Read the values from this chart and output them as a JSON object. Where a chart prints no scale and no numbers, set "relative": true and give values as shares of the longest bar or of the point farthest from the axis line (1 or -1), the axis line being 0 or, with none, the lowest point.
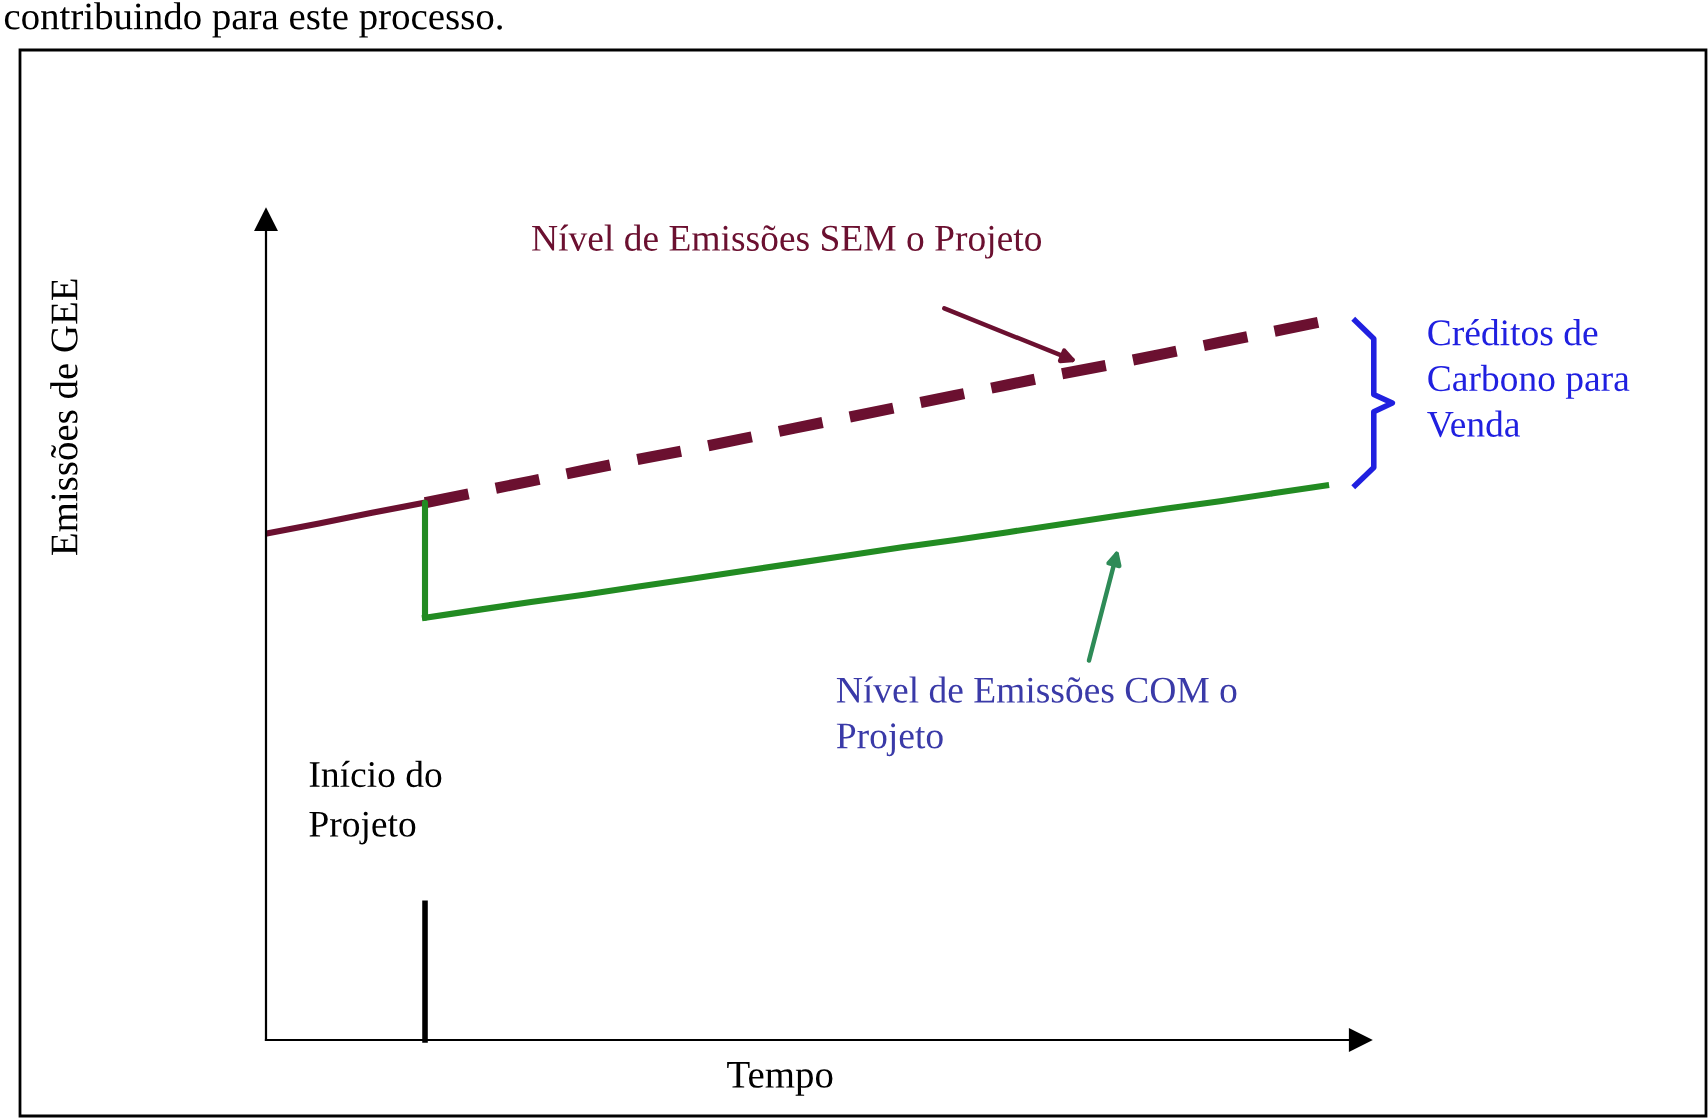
{
  "chart_data": {
    "type": "line",
    "relative": true,
    "xlabel": "Tempo",
    "ylabel": "Emissões de GEE",
    "marker": "none",
    "categories": [
      null,
      null,
      null,
      null,
      null,
      null,
      null,
      null,
      null,
      null,
      null,
      null,
      null,
      null,
      null,
      null,
      null,
      null,
      null,
      null,
      null
    ],
    "series": [
      {
        "color": "#6b1030",
        "line_style": "solid",
        "values": [
          0.704,
          0.718,
          0.733,
          0.747,
          null,
          null,
          null,
          null,
          null,
          null,
          null,
          null,
          null,
          null,
          null,
          null,
          null,
          null,
          null,
          null,
          null
        ]
      },
      {
        "name": "Nível de Emissões SEM o Projeto",
        "color": "#6b1030",
        "line_style": "dashed",
        "values": [
          null,
          null,
          null,
          0.747,
          0.762,
          0.777,
          0.792,
          0.807,
          0.821,
          0.836,
          0.851,
          0.866,
          0.881,
          0.896,
          0.911,
          0.926,
          0.94,
          0.955,
          0.97,
          0.985,
          1.0
        ]
      },
      {
        "name": "Nível de Emissões COM o Projeto",
        "color": "#228b22",
        "line_style": "solid",
        "values": [
          null,
          null,
          null,
          0.587,
          0.598,
          0.609,
          0.619,
          0.63,
          0.641,
          0.652,
          0.663,
          0.674,
          0.685,
          0.695,
          0.706,
          0.717,
          0.728,
          0.739,
          0.749,
          0.76,
          0.771
        ]
      }
    ],
    "annotations": [
      "contribuindo para este processo.",
      "Créditos de Carbono para Venda",
      "Início do Projeto"
    ]
  }
}
